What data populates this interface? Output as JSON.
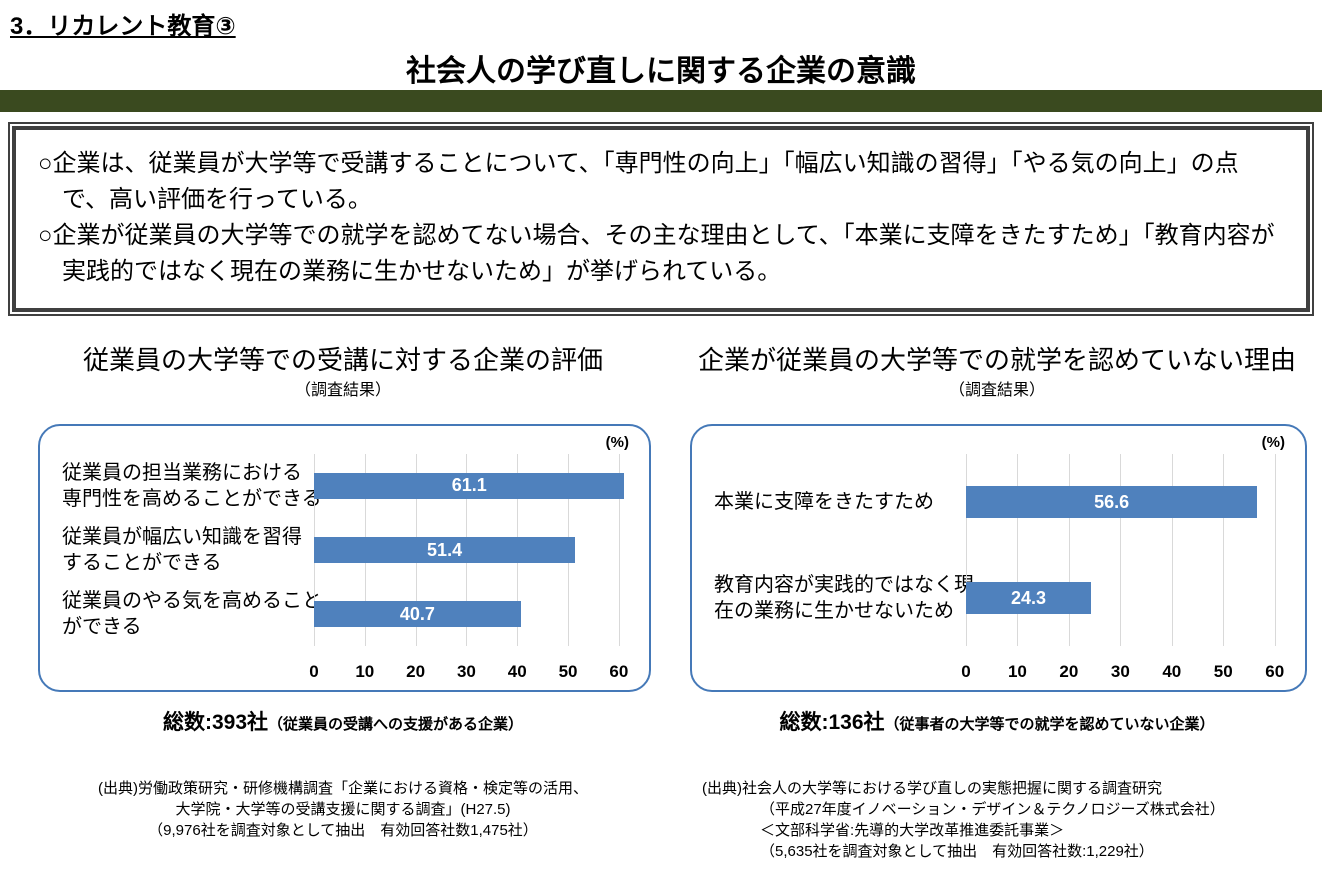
{
  "header": {
    "section_title": "3．リカレント教育③",
    "main_title": "社会人の学び直しに関する企業の意識"
  },
  "summary_box": {
    "bullets": [
      "○企業は、従業員が大学等で受講することについて、「専門性の向上」「幅広い知識の習得」「やる気の向上」の点で、高い評価を行っている。",
      "○企業が従業員の大学等での就学を認めてない場合、その主な理由として、「本業に支障をきたすため」「教育内容が実践的ではなく現在の業務に生かせないため」が挙げられている。"
    ]
  },
  "colors": {
    "band_green": "#3A4A1F",
    "bar_blue": "#4F81BD",
    "chart_border_blue": "#4579B8",
    "gridline_gray": "#D9D9D9",
    "bar_value_text": "#ffffff"
  },
  "chart_data": [
    {
      "type": "bar",
      "orientation": "horizontal",
      "title": "従業員の大学等での受講に対する企業の評価",
      "subtitle": "（調査結果）",
      "unit_label": "(%)",
      "categories": [
        [
          "従業員の担当業務における",
          "専門性を高めることができる"
        ],
        [
          "従業員が幅広い知識を習得",
          "することができる"
        ],
        [
          "従業員のやる気を高めること",
          "ができる"
        ]
      ],
      "values": [
        61.1,
        51.4,
        40.7
      ],
      "xlim": [
        0,
        62
      ],
      "ticks": [
        0,
        10,
        20,
        30,
        40,
        50,
        60
      ],
      "grid": true,
      "legend": "none",
      "total": {
        "label": "総数:393社",
        "note": "（従業員の受講への支援がある企業）"
      },
      "source_lines": [
        "(出典)労働政策研究・研修機構調査「企業における資格・検定等の活用、",
        "大学院・大学等の受講支援に関する調査」(H27.5)",
        "（9,976社を調査対象として抽出　有効回答社数1,475社）"
      ]
    },
    {
      "type": "bar",
      "orientation": "horizontal",
      "title": "企業が従業員の大学等での就学を認めていない理由",
      "subtitle": "（調査結果）",
      "unit_label": "(%)",
      "categories": [
        [
          "本業に支障をきたすため"
        ],
        [
          "教育内容が実践的ではなく現",
          "在の業務に生かせないため"
        ]
      ],
      "values": [
        56.6,
        24.3
      ],
      "xlim": [
        0,
        62
      ],
      "ticks": [
        0,
        10,
        20,
        30,
        40,
        50,
        60
      ],
      "grid": true,
      "legend": "none",
      "total": {
        "label": "総数:136社",
        "note": "（従事者の大学等での就学を認めていない企業）"
      },
      "source_lines": [
        "(出典)社会人の大学等における学び直しの実態把握に関する調査研究",
        "（平成27年度イノベーション・デザイン＆テクノロジーズ株式会社）",
        "＜文部科学省:先導的大学改革推進委託事業＞",
        "（5,635社を調査対象として抽出　有効回答社数:1,229社）"
      ]
    }
  ]
}
